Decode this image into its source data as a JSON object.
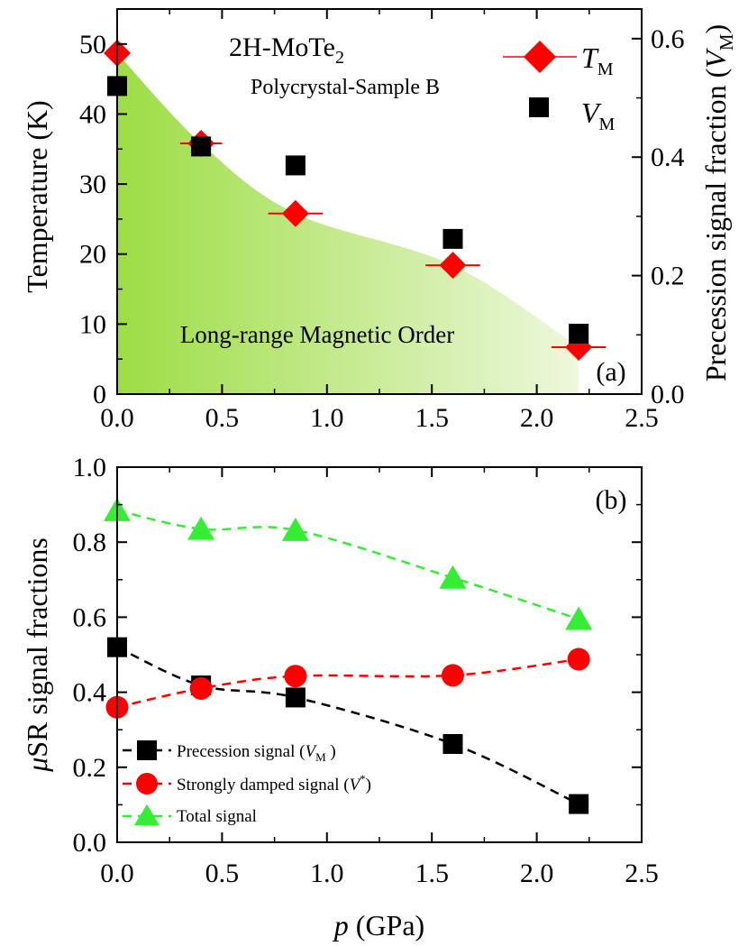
{
  "chart_data": [
    {
      "panel": "a",
      "type": "scatter",
      "title": "2H-MoTe",
      "title_sub": "2",
      "subtitle": "Polycrystal-Sample B",
      "panel_label": "(a)",
      "region_label": "Long-range Magnetic Order",
      "region_color_start": "#9ddd44",
      "region_color_end": "#eef8dd",
      "xlabel": "",
      "ylabel": "Temperature (K)",
      "y2label_prefix": "Precession signal fraction (",
      "y2label_var": "V",
      "y2label_sub": "M",
      "y2label_suffix": ")",
      "xlim": [
        0,
        2.5
      ],
      "ylim": [
        0,
        55
      ],
      "y2lim": [
        0,
        0.65
      ],
      "xticks": [
        "0.0",
        "0.5",
        "1.0",
        "1.5",
        "2.0",
        "2.5"
      ],
      "yticks": [
        "0",
        "10",
        "20",
        "30",
        "40",
        "50"
      ],
      "y2ticks": [
        "0.0",
        "0.2",
        "0.4",
        "0.6"
      ],
      "legend_position": "top-right",
      "series": [
        {
          "name": "T",
          "name_sub": "M",
          "axis": "left",
          "marker": "diamond",
          "color": "#ff0000",
          "x": [
            0.0,
            0.4,
            0.85,
            1.6,
            2.2
          ],
          "y": [
            48.7,
            35.8,
            25.8,
            18.4,
            6.7
          ],
          "xerr": [
            0.02,
            0.1,
            0.13,
            0.13,
            0.13
          ]
        },
        {
          "name": "V",
          "name_sub": "M",
          "axis": "right",
          "marker": "square",
          "color": "#000000",
          "x": [
            0.0,
            0.4,
            0.85,
            1.6,
            2.2
          ],
          "y": [
            0.52,
            0.418,
            0.386,
            0.262,
            0.102
          ]
        }
      ]
    },
    {
      "panel": "b",
      "type": "line",
      "panel_label": "(b)",
      "xlabel_var": "p",
      "xlabel_rest": " (GPa)",
      "ylabel_var": "μ",
      "ylabel_rest": "SR signal fractions",
      "xlim": [
        0,
        2.5
      ],
      "ylim": [
        0,
        1.0
      ],
      "xticks": [
        "0.0",
        "0.5",
        "1.0",
        "1.5",
        "2.0",
        "2.5"
      ],
      "yticks": [
        "0.0",
        "0.2",
        "0.4",
        "0.6",
        "0.8",
        "1.0"
      ],
      "legend_position": "bottom-left",
      "series": [
        {
          "name": "Precession signal (",
          "name_var": "V",
          "name_sub": "M",
          "name_end": " )",
          "marker": "square",
          "color": "#000000",
          "x": [
            0.0,
            0.4,
            0.85,
            1.6,
            2.2
          ],
          "y": [
            0.52,
            0.418,
            0.386,
            0.262,
            0.102
          ]
        },
        {
          "name": "Strongly damped signal (",
          "name_var": "V",
          "name_sup": "*",
          "name_end": ")",
          "marker": "circle",
          "color": "#ff0000",
          "x": [
            0.0,
            0.4,
            0.85,
            1.6,
            2.2
          ],
          "y": [
            0.36,
            0.41,
            0.443,
            0.445,
            0.488
          ]
        },
        {
          "name": "Total signal",
          "marker": "triangle",
          "color": "#33ee33",
          "x": [
            0.0,
            0.4,
            0.85,
            1.6,
            2.2
          ],
          "y": [
            0.885,
            0.835,
            0.832,
            0.705,
            0.595
          ]
        }
      ]
    }
  ]
}
